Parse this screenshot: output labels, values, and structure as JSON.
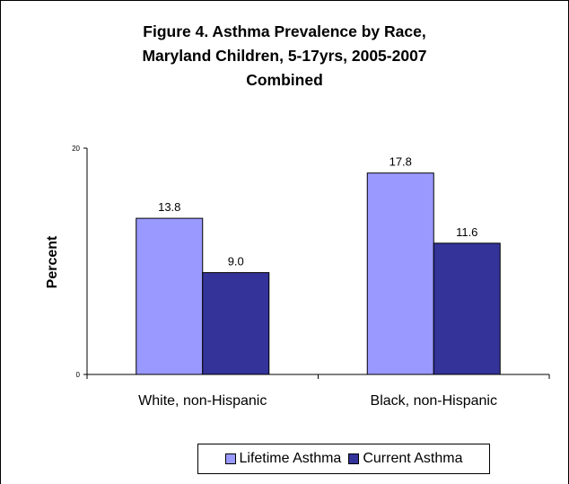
{
  "chart_data": {
    "type": "bar",
    "title_lines": [
      "Figure 4. Asthma Prevalence by Race,",
      "Maryland Children, 5-17yrs, 2005-2007",
      "Combined"
    ],
    "xlabel": "",
    "ylabel": "Percent",
    "ylim": [
      0,
      20
    ],
    "yticks": [
      "0",
      "20"
    ],
    "categories": [
      "White, non-Hispanic",
      "Black, non-Hispanic"
    ],
    "series": [
      {
        "name": "Lifetime Asthma",
        "values": [
          13.8,
          17.8
        ],
        "labels": [
          "13.8",
          "17.8"
        ],
        "color": "#9999ff"
      },
      {
        "name": "Current Asthma",
        "values": [
          9.0,
          11.6
        ],
        "labels": [
          "9.0",
          "11.6"
        ],
        "color": "#333399"
      }
    ],
    "grid": false,
    "legend_position": "bottom"
  }
}
